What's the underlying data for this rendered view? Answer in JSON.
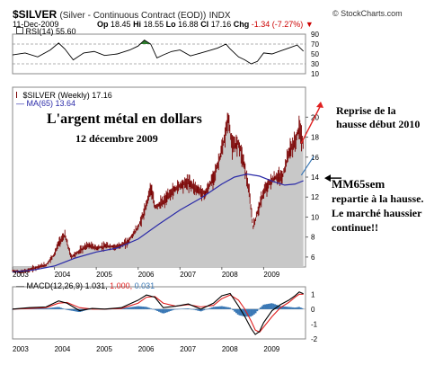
{
  "header": {
    "ticker": "$SILVER",
    "description": "(Silver - Continuous Contract (EOD))",
    "exchange": "INDX",
    "brand": "© StockCharts.com",
    "date": "11-Dec-2009",
    "open_label": "Op",
    "open": "18.45",
    "high_label": "Hi",
    "high": "18.55",
    "low_label": "Lo",
    "low": "16.88",
    "close_label": "Cl",
    "close": "17.16",
    "chg_label": "Chg",
    "chg": "-1.34 (-7.27%)",
    "chg_arrow": "▼"
  },
  "labels": {
    "rsi_legend": "RSI(14) 55.60",
    "price_legend": "$SILVER (Weekly) 17.16",
    "ma_legend": "MA(65) 13.64",
    "macd_name": "MACD(12,26,9)",
    "macd_v1": "1.031,",
    "macd_v2": "1.000,",
    "macd_v3": "0.031"
  },
  "annotations": {
    "title": "L'argent métal en dollars",
    "subtitle": "12 décembre 2009",
    "reprise": [
      "Reprise de la",
      "hausse début 2010"
    ],
    "mm65": [
      "MM65sem",
      "repartie à la hausse.",
      "Le marché haussier",
      "continue!!"
    ]
  },
  "colors": {
    "price_bar": "#7a0000",
    "area_fill": "#c8c8c8",
    "ma_line": "#2a2aa8",
    "rsi_fill": "#2e7d2e",
    "macd_line": "#000000",
    "signal_line": "#e02020",
    "histogram": "#3a78b5",
    "arrow_red": "#e02020"
  },
  "chart_data": [
    {
      "type": "line",
      "name": "RSI(14)",
      "ylim": [
        10,
        90
      ],
      "yticks": [
        10,
        30,
        50,
        70,
        90
      ],
      "x": [
        2003.0,
        2003.3,
        2003.6,
        2003.9,
        2004.1,
        2004.25,
        2004.45,
        2004.7,
        2004.95,
        2005.2,
        2005.5,
        2005.8,
        2006.0,
        2006.15,
        2006.3,
        2006.45,
        2006.6,
        2006.8,
        2007.0,
        2007.25,
        2007.5,
        2007.75,
        2007.9,
        2008.1,
        2008.2,
        2008.4,
        2008.55,
        2008.7,
        2008.85,
        2009.0,
        2009.2,
        2009.4,
        2009.6,
        2009.8,
        2009.95
      ],
      "values": [
        48,
        52,
        44,
        58,
        72,
        60,
        38,
        52,
        55,
        47,
        50,
        58,
        66,
        78,
        70,
        42,
        48,
        55,
        58,
        46,
        52,
        58,
        62,
        70,
        60,
        44,
        38,
        30,
        35,
        52,
        50,
        56,
        62,
        68,
        55.6
      ]
    },
    {
      "type": "line",
      "name": "$SILVER (Weekly)",
      "ylim": [
        5,
        23
      ],
      "yticks": [
        6,
        8,
        10,
        12,
        14,
        16,
        18,
        20
      ],
      "xlim": [
        2003.0,
        2010.0
      ],
      "xticks": [
        "2003",
        "2004",
        "2005",
        "2006",
        "2007",
        "2008",
        "2009"
      ],
      "x": [
        2003.0,
        2003.2,
        2003.4,
        2003.6,
        2003.8,
        2004.0,
        2004.1,
        2004.25,
        2004.4,
        2004.6,
        2004.8,
        2005.0,
        2005.25,
        2005.5,
        2005.75,
        2006.0,
        2006.15,
        2006.3,
        2006.4,
        2006.6,
        2006.8,
        2007.0,
        2007.2,
        2007.4,
        2007.6,
        2007.8,
        2007.9,
        2008.05,
        2008.15,
        2008.25,
        2008.4,
        2008.55,
        2008.65,
        2008.75,
        2008.85,
        2009.0,
        2009.15,
        2009.3,
        2009.45,
        2009.6,
        2009.75,
        2009.85,
        2009.95
      ],
      "values": [
        4.6,
        4.5,
        4.7,
        5.0,
        5.2,
        6.3,
        7.4,
        8.2,
        6.0,
        6.6,
        7.2,
        6.9,
        7.1,
        7.0,
        7.5,
        9.0,
        10.5,
        13.0,
        11.0,
        11.5,
        12.5,
        13.2,
        13.5,
        12.8,
        12.3,
        14.0,
        15.2,
        17.5,
        20.0,
        17.0,
        17.5,
        15.0,
        12.5,
        9.0,
        10.5,
        12.5,
        13.5,
        14.0,
        14.0,
        16.5,
        17.5,
        19.0,
        17.16
      ]
    },
    {
      "type": "line",
      "name": "MA(65)",
      "x": [
        2003.0,
        2003.5,
        2004.0,
        2004.5,
        2005.0,
        2005.5,
        2006.0,
        2006.5,
        2007.0,
        2007.5,
        2008.0,
        2008.3,
        2008.6,
        2008.9,
        2009.2,
        2009.5,
        2009.75,
        2009.95
      ],
      "values": [
        4.5,
        4.7,
        5.1,
        5.9,
        6.5,
        6.9,
        7.8,
        9.3,
        10.7,
        11.9,
        13.3,
        14.0,
        14.3,
        14.1,
        13.6,
        13.2,
        13.3,
        13.64
      ]
    },
    {
      "type": "line",
      "name": "MACD(12,26,9)",
      "ylim": [
        -2,
        1.5
      ],
      "yticks": [
        1,
        0,
        -1,
        -2
      ],
      "x": [
        2003.0,
        2003.4,
        2003.8,
        2004.1,
        2004.3,
        2004.6,
        2004.9,
        2005.2,
        2005.6,
        2006.0,
        2006.2,
        2006.4,
        2006.6,
        2006.9,
        2007.2,
        2007.5,
        2007.8,
        2008.0,
        2008.2,
        2008.4,
        2008.55,
        2008.7,
        2008.8,
        2008.9,
        2009.0,
        2009.2,
        2009.4,
        2009.6,
        2009.75,
        2009.85,
        2009.95
      ],
      "macd": [
        0.0,
        0.1,
        0.15,
        0.55,
        0.4,
        -0.1,
        0.05,
        0.0,
        0.1,
        0.6,
        0.95,
        0.8,
        0.1,
        0.2,
        0.35,
        0.0,
        0.4,
        0.9,
        1.05,
        0.2,
        -0.5,
        -1.3,
        -1.7,
        -1.5,
        -0.9,
        -0.1,
        0.3,
        0.6,
        0.9,
        1.15,
        1.031
      ],
      "signal": [
        0.0,
        0.05,
        0.1,
        0.4,
        0.45,
        0.1,
        0.0,
        0.0,
        0.05,
        0.4,
        0.8,
        0.85,
        0.4,
        0.2,
        0.3,
        0.15,
        0.25,
        0.7,
        0.95,
        0.6,
        0.0,
        -0.8,
        -1.4,
        -1.55,
        -1.2,
        -0.5,
        0.1,
        0.45,
        0.8,
        1.0,
        1.0
      ]
    }
  ]
}
